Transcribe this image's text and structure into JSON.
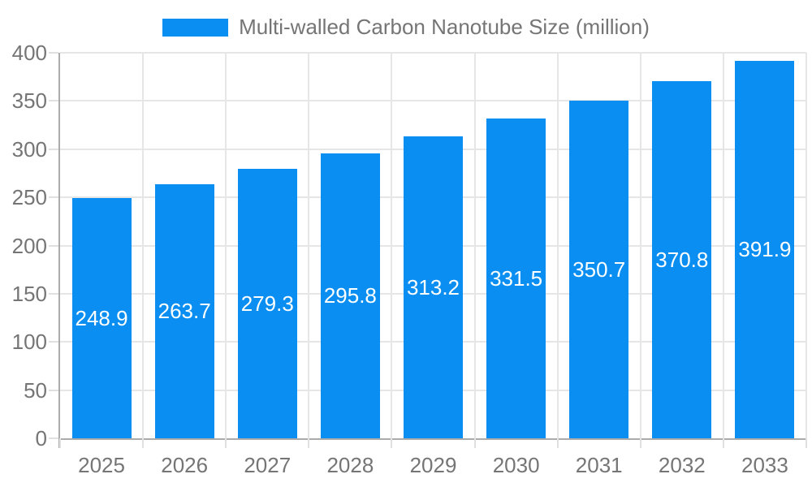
{
  "chart_data": {
    "type": "bar",
    "title": "Multi-walled Carbon Nanotube Size (million)",
    "series": [
      {
        "name": "Multi-walled Carbon Nanotube Size (million)",
        "values": [
          248.9,
          263.7,
          279.3,
          295.8,
          313.2,
          331.5,
          350.7,
          370.8,
          391.9
        ]
      }
    ],
    "categories": [
      "2025",
      "2026",
      "2027",
      "2028",
      "2029",
      "2030",
      "2031",
      "2032",
      "2033"
    ],
    "xlabel": "",
    "ylabel": "",
    "ylim": [
      0,
      400
    ],
    "yticks": [
      0,
      50,
      100,
      150,
      200,
      250,
      300,
      350,
      400
    ],
    "grid": true,
    "legend_position": "top-center",
    "value_label_position": "inside-center",
    "value_label_decimals": 1
  },
  "colors": {
    "bar": "#0a8ef2",
    "axis_text": "#757575",
    "legend_text": "#757575",
    "grid_line": "#e6e6e6",
    "tick_line": "#e0e0e0",
    "axis_line": "#ababab",
    "value_label_text": "#ffffff",
    "background": "#ffffff"
  }
}
